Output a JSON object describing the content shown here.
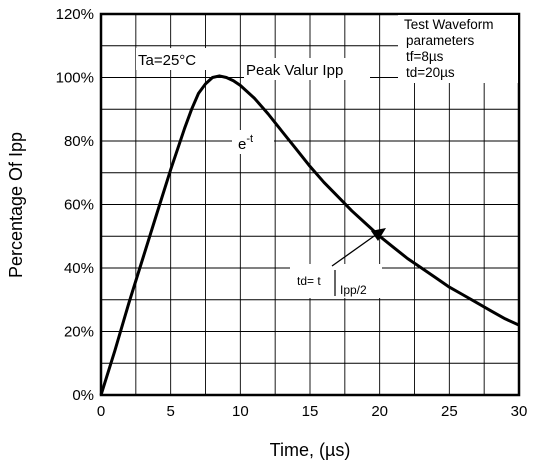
{
  "chart_data": {
    "type": "line",
    "xlabel": "Time, (µs)",
    "ylabel": "Percentage Of Ipp",
    "xlim": [
      0,
      30
    ],
    "ylim": [
      0,
      120
    ],
    "x_ticks": [
      "0",
      "5",
      "10",
      "15",
      "20",
      "25",
      "30"
    ],
    "y_ticks": [
      "0%",
      "20%",
      "40%",
      "60%",
      "80%",
      "100%",
      "120%"
    ],
    "grid": true,
    "series": [
      {
        "x": [
          0,
          1,
          2,
          3,
          4,
          5,
          6,
          6.5,
          7,
          7.5,
          8,
          8.5,
          9,
          9.5,
          10,
          11,
          12,
          13,
          14,
          15,
          16,
          17,
          18,
          19,
          20,
          21,
          22,
          23,
          24,
          25,
          26,
          27,
          28,
          29,
          30
        ],
        "values": [
          0,
          14,
          29,
          43,
          57,
          71,
          84,
          90,
          95,
          98,
          100,
          100.5,
          100,
          99,
          97.5,
          93.5,
          88.5,
          83,
          77.5,
          72,
          67,
          62.5,
          58,
          54,
          50,
          46.5,
          43,
          40,
          37,
          34,
          31.5,
          29,
          26.5,
          24,
          22
        ]
      }
    ],
    "annotations": {
      "ambient": "Ta=25°C",
      "peak": "Peak Valur Ipp",
      "decay_base": "e",
      "decay_exp": "-t",
      "td_label": "td= t",
      "td_sub": "Ipp/2",
      "test_box": [
        "Test Waveform",
        "parameters",
        "tf=8µs",
        "td=20µs"
      ]
    }
  }
}
